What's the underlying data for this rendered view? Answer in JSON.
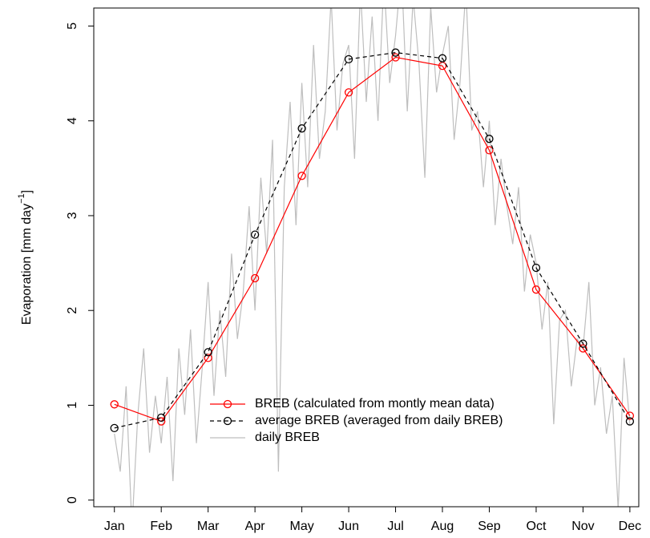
{
  "chart_data": {
    "type": "line",
    "y_label": "Evaporation [mm day",
    "y_label_sup": "−1",
    "y_label_end": "]",
    "categories": [
      "Jan",
      "Feb",
      "Mar",
      "Apr",
      "May",
      "Jun",
      "Jul",
      "Aug",
      "Sep",
      "Oct",
      "Nov",
      "Dec"
    ],
    "xlim": [
      0.56,
      12.19
    ],
    "ylim": [
      -0.07,
      5.19
    ],
    "yticks": [
      0,
      1,
      2,
      3,
      4,
      5
    ],
    "legend": "bottom-center",
    "series": [
      {
        "name": "BREB (calculated from montly mean data)",
        "color": "#ff0000",
        "line_style": "solid",
        "marker": "circle",
        "values": [
          1.01,
          0.83,
          1.5,
          2.34,
          3.42,
          4.3,
          4.67,
          4.58,
          3.69,
          2.22,
          1.6,
          0.89
        ]
      },
      {
        "name": "average BREB (averaged from daily BREB)",
        "color": "#000000",
        "line_style": "dashed",
        "marker": "circle",
        "values": [
          0.76,
          0.87,
          1.56,
          2.8,
          3.92,
          4.65,
          4.72,
          4.66,
          3.81,
          2.45,
          1.65,
          0.83
        ]
      },
      {
        "name": "daily BREB",
        "color": "#bebebe",
        "line_style": "solid",
        "marker": "none",
        "x": [
          1,
          1.125,
          1.25,
          1.375,
          1.5,
          1.625,
          1.75,
          1.875,
          2,
          2.125,
          2.25,
          2.375,
          2.5,
          2.625,
          2.75,
          2.875,
          3,
          3.125,
          3.25,
          3.375,
          3.5,
          3.625,
          3.75,
          3.875,
          4,
          4.125,
          4.25,
          4.375,
          4.5,
          4.625,
          4.75,
          4.875,
          5,
          5.125,
          5.25,
          5.375,
          5.5,
          5.625,
          5.75,
          5.875,
          6,
          6.125,
          6.25,
          6.375,
          6.5,
          6.625,
          6.75,
          6.875,
          7,
          7.125,
          7.25,
          7.375,
          7.5,
          7.625,
          7.75,
          7.875,
          8,
          8.125,
          8.25,
          8.375,
          8.5,
          8.625,
          8.75,
          8.875,
          9,
          9.125,
          9.25,
          9.375,
          9.5,
          9.625,
          9.75,
          9.875,
          10,
          10.125,
          10.25,
          10.375,
          10.5,
          10.625,
          10.75,
          10.875,
          11,
          11.125,
          11.25,
          11.375,
          11.5,
          11.625,
          11.75,
          11.875,
          12
        ],
        "values": [
          0.7,
          0.3,
          1.2,
          -0.3,
          0.9,
          1.6,
          0.5,
          1.1,
          0.6,
          1.3,
          0.2,
          1.6,
          0.9,
          1.8,
          0.6,
          1.4,
          2.3,
          1.1,
          2.0,
          1.3,
          2.6,
          1.7,
          2.2,
          3.1,
          2.0,
          3.4,
          2.6,
          3.8,
          0.3,
          3.3,
          4.2,
          2.9,
          4.4,
          3.3,
          4.8,
          3.6,
          4.1,
          5.3,
          3.9,
          4.6,
          4.8,
          3.6,
          5.4,
          4.2,
          5.1,
          4.0,
          5.5,
          4.4,
          4.9,
          5.6,
          4.1,
          5.3,
          4.6,
          3.4,
          5.2,
          4.3,
          4.7,
          5.0,
          3.8,
          4.4,
          5.4,
          3.9,
          4.1,
          3.3,
          4.0,
          2.9,
          3.6,
          3.1,
          2.7,
          3.3,
          2.2,
          2.8,
          2.5,
          1.8,
          2.3,
          0.8,
          1.9,
          2.0,
          1.2,
          1.7,
          1.6,
          2.3,
          1.0,
          1.4,
          0.7,
          1.1,
          -0.1,
          1.5,
          0.8
        ]
      }
    ]
  }
}
